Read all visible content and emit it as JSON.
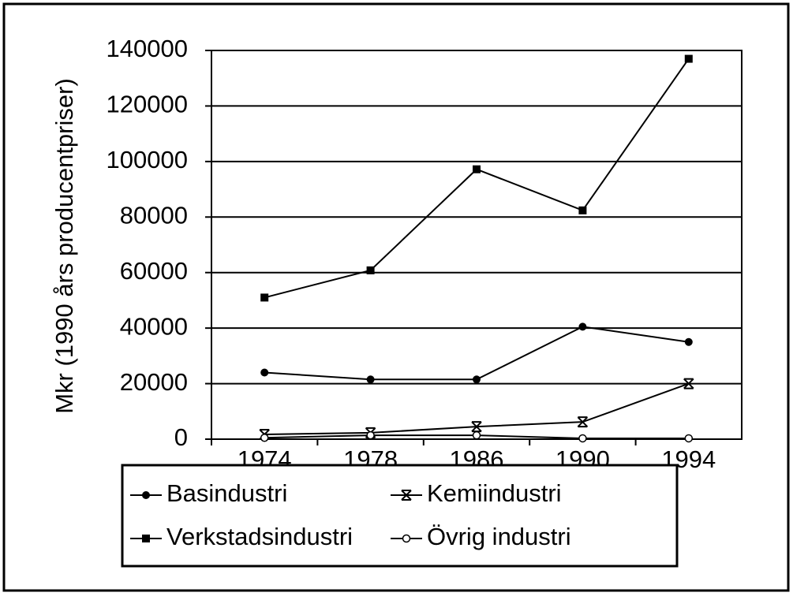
{
  "chart_data": {
    "type": "line",
    "y_label": "Mkr (1990 års producentpriser)",
    "categories": [
      "1974",
      "1978",
      "1986",
      "1990",
      "1994"
    ],
    "series": [
      {
        "name": "Basindustri",
        "color": "#000000",
        "marker": "circle",
        "values": [
          24000,
          21500,
          21500,
          40500,
          35000
        ]
      },
      {
        "name": "Kemiindustri",
        "color": "#000000",
        "marker": "x",
        "values": [
          1700,
          2300,
          4500,
          6200,
          20000
        ]
      },
      {
        "name": "Verkstadsindustri",
        "color": "#000000",
        "marker": "square",
        "values": [
          51000,
          60800,
          97200,
          82400,
          137000
        ]
      },
      {
        "name": "Övrig industri",
        "color": "#000000",
        "marker": "open-circle",
        "values": [
          500,
          1400,
          1400,
          300,
          300
        ]
      }
    ],
    "ylim": [
      0,
      140000
    ],
    "yticks": [
      0,
      20000,
      40000,
      60000,
      80000,
      100000,
      120000,
      140000
    ],
    "grid": true,
    "legend": "bottom"
  }
}
